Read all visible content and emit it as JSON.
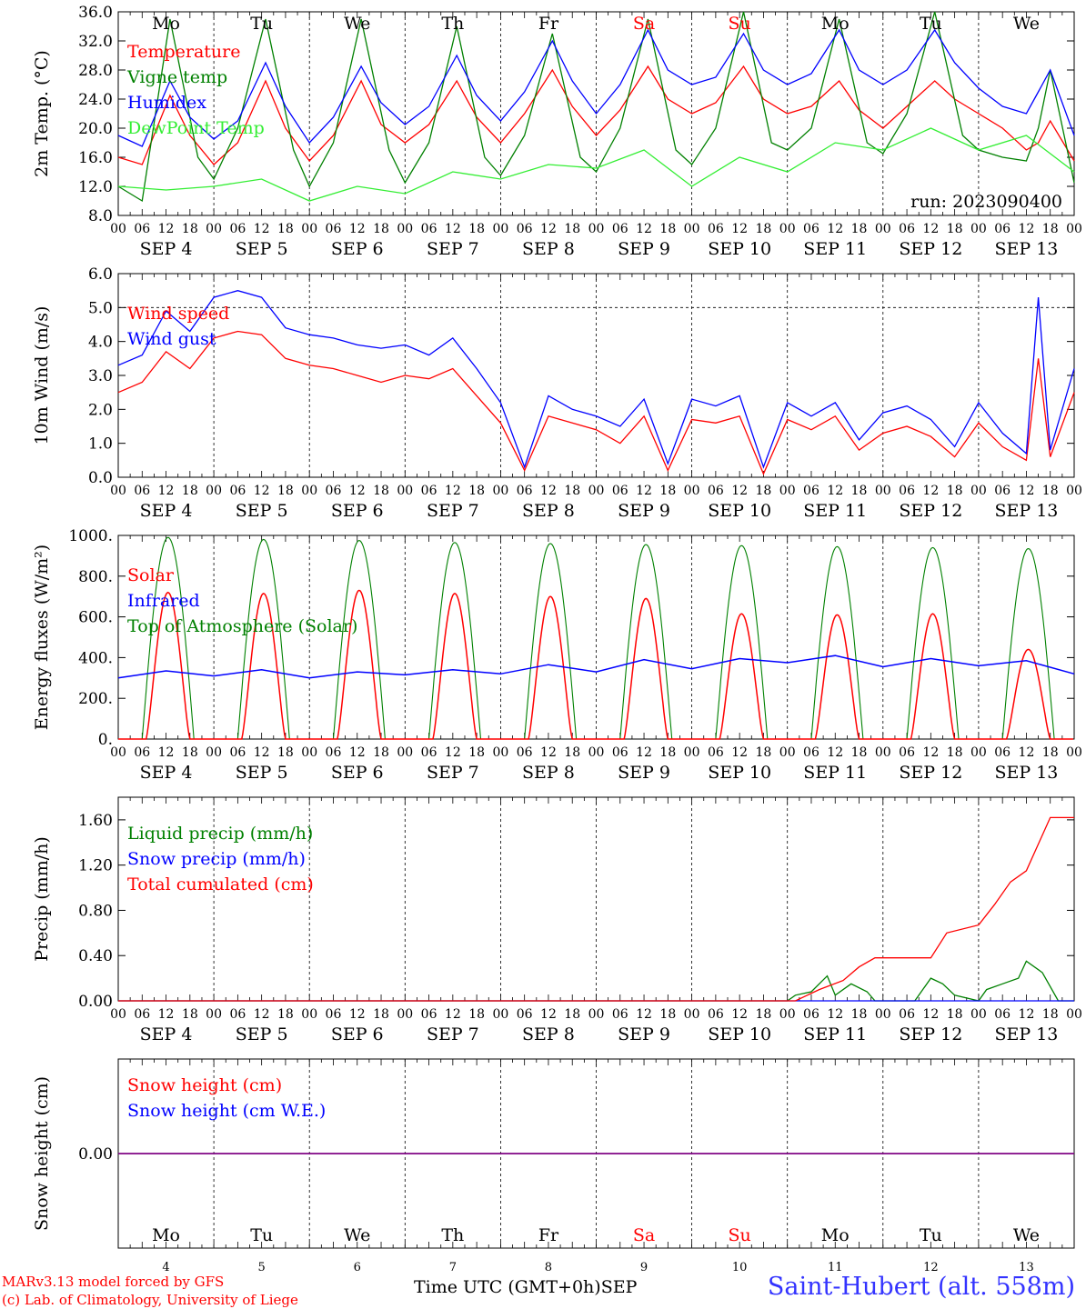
{
  "run_label": "run: 2023090400",
  "days": {
    "weekdays": [
      "Mo",
      "Tu",
      "We",
      "Th",
      "Fr",
      "Sa",
      "Su",
      "Mo",
      "Tu",
      "We"
    ],
    "dates": [
      "SEP  4",
      "SEP  5",
      "SEP  6",
      "SEP  7",
      "SEP  8",
      "SEP  9",
      "SEP 10",
      "SEP 11",
      "SEP 12",
      "SEP 13"
    ],
    "day_numbers": [
      "4",
      "5",
      "6",
      "7",
      "8",
      "9",
      "10",
      "11",
      "12",
      "13"
    ],
    "hour_labels": [
      "00",
      "06",
      "12",
      "18"
    ],
    "end_label": "00",
    "weekend_color": "#ff0000",
    "weekend_indices": [
      5,
      6
    ]
  },
  "footer": {
    "model_line": "MARv3.13 model forced by GFS",
    "lab_line": "(c) Lab. of Climatology, University of Liege",
    "time_label": "Time UTC (GMT+0h)",
    "month_label": "SEP",
    "station": "Saint-Hubert (alt. 558m)"
  },
  "colors": {
    "red": "#ff0000",
    "green": "#008000",
    "blue": "#0000ff",
    "lightgreen": "#33ee33",
    "purple": "#800080"
  },
  "chart_data": [
    {
      "type": "line",
      "ylabel": "2m Temp. (°C)",
      "ylim": [
        8,
        36
      ],
      "yticks": [
        "8.0",
        "12.0",
        "16.0",
        "20.0",
        "24.0",
        "28.0",
        "32.0",
        "36.0"
      ],
      "x_unit": "hours since 2023-09-04 00 UTC",
      "xlim": [
        0,
        240
      ],
      "series": [
        {
          "name": "Temperature",
          "color": "#ff0000",
          "x": [
            0,
            6,
            13,
            18,
            24,
            30,
            37,
            42,
            48,
            54,
            61,
            66,
            72,
            78,
            85,
            90,
            96,
            102,
            109,
            114,
            120,
            126,
            133,
            138,
            144,
            150,
            157,
            162,
            168,
            174,
            181,
            186,
            192,
            198,
            205,
            210,
            216,
            222,
            228,
            231,
            234,
            240
          ],
          "y": [
            16,
            15,
            24.5,
            19,
            15,
            18,
            26.5,
            20,
            15.5,
            19,
            26.5,
            20.5,
            18,
            20.5,
            26.5,
            21.5,
            18,
            22,
            28,
            23,
            19,
            22.5,
            28.5,
            24,
            22,
            23.5,
            28.5,
            24,
            22,
            23,
            26.5,
            22.5,
            20,
            23,
            26.5,
            24,
            22,
            20,
            17,
            18,
            21,
            15.5
          ]
        },
        {
          "name": "Vigne temp",
          "color": "#008000",
          "x": [
            0,
            6,
            13,
            20,
            24,
            30,
            37,
            44,
            48,
            54,
            61,
            68,
            72,
            78,
            85,
            92,
            96,
            102,
            109,
            116,
            120,
            126,
            133,
            140,
            144,
            150,
            157,
            164,
            168,
            174,
            181,
            188,
            192,
            198,
            205,
            212,
            216,
            222,
            228,
            231,
            234,
            240
          ],
          "y": [
            12,
            10,
            35,
            16,
            13,
            20,
            35,
            17,
            12,
            18,
            35,
            17,
            12.5,
            18,
            34,
            16,
            13.5,
            19,
            33,
            16,
            14,
            20,
            35,
            17,
            15,
            20,
            36,
            18,
            17,
            20,
            35,
            18,
            16.5,
            22,
            36,
            19,
            17,
            16,
            15.5,
            20,
            28,
            12.5
          ]
        },
        {
          "name": "Humidex",
          "color": "#0000ff",
          "x": [
            0,
            6,
            13,
            18,
            24,
            30,
            37,
            42,
            48,
            54,
            61,
            66,
            72,
            78,
            85,
            90,
            96,
            102,
            109,
            114,
            120,
            126,
            133,
            138,
            144,
            150,
            157,
            162,
            168,
            174,
            181,
            186,
            192,
            198,
            205,
            210,
            216,
            222,
            228,
            231,
            234,
            240
          ],
          "y": [
            19,
            17.5,
            26.5,
            21.5,
            18.5,
            21,
            29,
            23,
            18,
            21.5,
            28.5,
            23.5,
            20.5,
            23,
            30,
            24.5,
            21,
            25,
            32,
            26.5,
            22,
            26,
            33.5,
            28,
            26,
            27,
            33,
            28,
            26,
            27.5,
            33.5,
            28,
            26,
            28,
            33.5,
            29,
            25.5,
            23,
            22,
            25,
            28,
            19
          ]
        },
        {
          "name": "DewPoint Temp",
          "color": "#33ee33",
          "x": [
            0,
            12,
            24,
            36,
            48,
            60,
            72,
            84,
            96,
            108,
            120,
            132,
            144,
            156,
            168,
            180,
            192,
            204,
            216,
            228,
            240
          ],
          "y": [
            12,
            11.5,
            12,
            13,
            10,
            12,
            11,
            14,
            13,
            15,
            14.5,
            17,
            12,
            16,
            14,
            18,
            17,
            20,
            17,
            19,
            14
          ]
        }
      ]
    },
    {
      "type": "line",
      "ylabel": "10m Wind (m/s)",
      "ylim": [
        0,
        6
      ],
      "yticks": [
        "0.0",
        "1.0",
        "2.0",
        "3.0",
        "4.0",
        "5.0",
        "6.0"
      ],
      "reference_line": 5,
      "xlim": [
        0,
        240
      ],
      "series": [
        {
          "name": "Wind speed",
          "color": "#ff0000",
          "x": [
            0,
            6,
            12,
            18,
            24,
            30,
            36,
            42,
            48,
            54,
            60,
            66,
            72,
            78,
            84,
            90,
            96,
            102,
            108,
            114,
            120,
            126,
            132,
            138,
            144,
            150,
            156,
            162,
            168,
            174,
            180,
            186,
            192,
            198,
            204,
            210,
            216,
            222,
            228,
            231,
            234,
            240
          ],
          "y": [
            2.5,
            2.8,
            3.7,
            3.2,
            4.1,
            4.3,
            4.2,
            3.5,
            3.3,
            3.2,
            3.0,
            2.8,
            3.0,
            2.9,
            3.2,
            2.4,
            1.6,
            0.2,
            1.8,
            1.6,
            1.4,
            1.0,
            1.8,
            0.2,
            1.7,
            1.6,
            1.8,
            0.1,
            1.7,
            1.4,
            1.8,
            0.8,
            1.3,
            1.5,
            1.2,
            0.6,
            1.6,
            0.9,
            0.5,
            3.5,
            0.6,
            2.5
          ]
        },
        {
          "name": "Wind gust",
          "color": "#0000ff",
          "x": [
            0,
            6,
            12,
            18,
            24,
            30,
            36,
            42,
            48,
            54,
            60,
            66,
            72,
            78,
            84,
            90,
            96,
            102,
            108,
            114,
            120,
            126,
            132,
            138,
            144,
            150,
            156,
            162,
            168,
            174,
            180,
            186,
            192,
            198,
            204,
            210,
            216,
            222,
            228,
            231,
            234,
            240
          ],
          "y": [
            3.3,
            3.6,
            4.9,
            4.3,
            5.3,
            5.5,
            5.3,
            4.4,
            4.2,
            4.1,
            3.9,
            3.8,
            3.9,
            3.6,
            4.1,
            3.2,
            2.2,
            0.3,
            2.4,
            2.0,
            1.8,
            1.5,
            2.3,
            0.4,
            2.3,
            2.1,
            2.4,
            0.3,
            2.2,
            1.8,
            2.2,
            1.1,
            1.9,
            2.1,
            1.7,
            0.9,
            2.2,
            1.3,
            0.7,
            5.3,
            0.8,
            3.2
          ]
        }
      ]
    },
    {
      "type": "line",
      "ylabel": "Energy fluxes (W/m²)",
      "ylim": [
        0,
        1000
      ],
      "yticks": [
        "0.",
        "200.",
        "400.",
        "600.",
        "800.",
        "1000."
      ],
      "xlim": [
        0,
        240
      ],
      "diurnal": {
        "day_start": [
          0,
          24,
          48,
          72,
          96,
          120,
          144,
          168,
          192,
          216
        ],
        "toa_peak": [
          990,
          980,
          975,
          965,
          960,
          955,
          950,
          945,
          940,
          935
        ],
        "solar_peak": [
          720,
          715,
          730,
          715,
          700,
          690,
          615,
          610,
          615,
          440
        ],
        "solar_rise_hour": 7,
        "solar_set_hour": 18,
        "toa_rise_hour": 6,
        "toa_set_hour": 19
      },
      "series": [
        {
          "name": "Solar",
          "color": "#ff0000"
        },
        {
          "name": "Infrared",
          "color": "#0000ff",
          "x": [
            0,
            12,
            24,
            36,
            48,
            60,
            72,
            84,
            96,
            108,
            120,
            132,
            144,
            156,
            168,
            180,
            192,
            204,
            216,
            228,
            240
          ],
          "y": [
            300,
            335,
            310,
            340,
            300,
            330,
            315,
            340,
            320,
            365,
            330,
            390,
            345,
            395,
            375,
            410,
            355,
            395,
            360,
            385,
            320
          ]
        },
        {
          "name": "Top of Atmosphere (Solar)",
          "color": "#008000"
        }
      ]
    },
    {
      "type": "line",
      "ylabel": "Precip (mm/h)",
      "ylim": [
        0,
        1.8
      ],
      "yticks": [
        "0.00",
        "0.40",
        "0.80",
        "1.20",
        "1.60"
      ],
      "xlim": [
        0,
        240
      ],
      "series": [
        {
          "name": "Liquid precip (mm/h)",
          "color": "#008000",
          "x": [
            0,
            168,
            170,
            174,
            178,
            180,
            184,
            188,
            190,
            194,
            200,
            204,
            207,
            210,
            216,
            218,
            222,
            226,
            228,
            232,
            236,
            240
          ],
          "y": [
            0,
            0,
            0.05,
            0.08,
            0.22,
            0.05,
            0.15,
            0.08,
            0,
            0,
            0,
            0.2,
            0.15,
            0.05,
            0,
            0.1,
            0.15,
            0.2,
            0.35,
            0.25,
            0,
            0
          ]
        },
        {
          "name": "Snow precip (mm/h)",
          "color": "#0000ff",
          "x": [
            0,
            240
          ],
          "y": [
            0,
            0
          ]
        },
        {
          "name": "Total cumulated (cm)",
          "color": "#ff0000",
          "x": [
            0,
            170,
            176,
            182,
            186,
            190,
            204,
            208,
            216,
            220,
            224,
            228,
            234,
            240
          ],
          "y": [
            0,
            0,
            0.1,
            0.18,
            0.3,
            0.38,
            0.38,
            0.6,
            0.67,
            0.85,
            1.05,
            1.15,
            1.62,
            1.62
          ]
        }
      ]
    },
    {
      "type": "line",
      "ylabel": "Snow height (cm)",
      "ylim": [
        -1,
        1
      ],
      "yticks": [
        "0.00"
      ],
      "xlim": [
        0,
        240
      ],
      "series": [
        {
          "name": "Snow height (cm)",
          "color": "#ff0000",
          "x": [
            0,
            240
          ],
          "y": [
            0,
            0
          ]
        },
        {
          "name": "Snow height (cm W.E.)",
          "color": "#0000ff",
          "x": [
            0,
            240
          ],
          "y": [
            0,
            0
          ]
        }
      ]
    }
  ]
}
